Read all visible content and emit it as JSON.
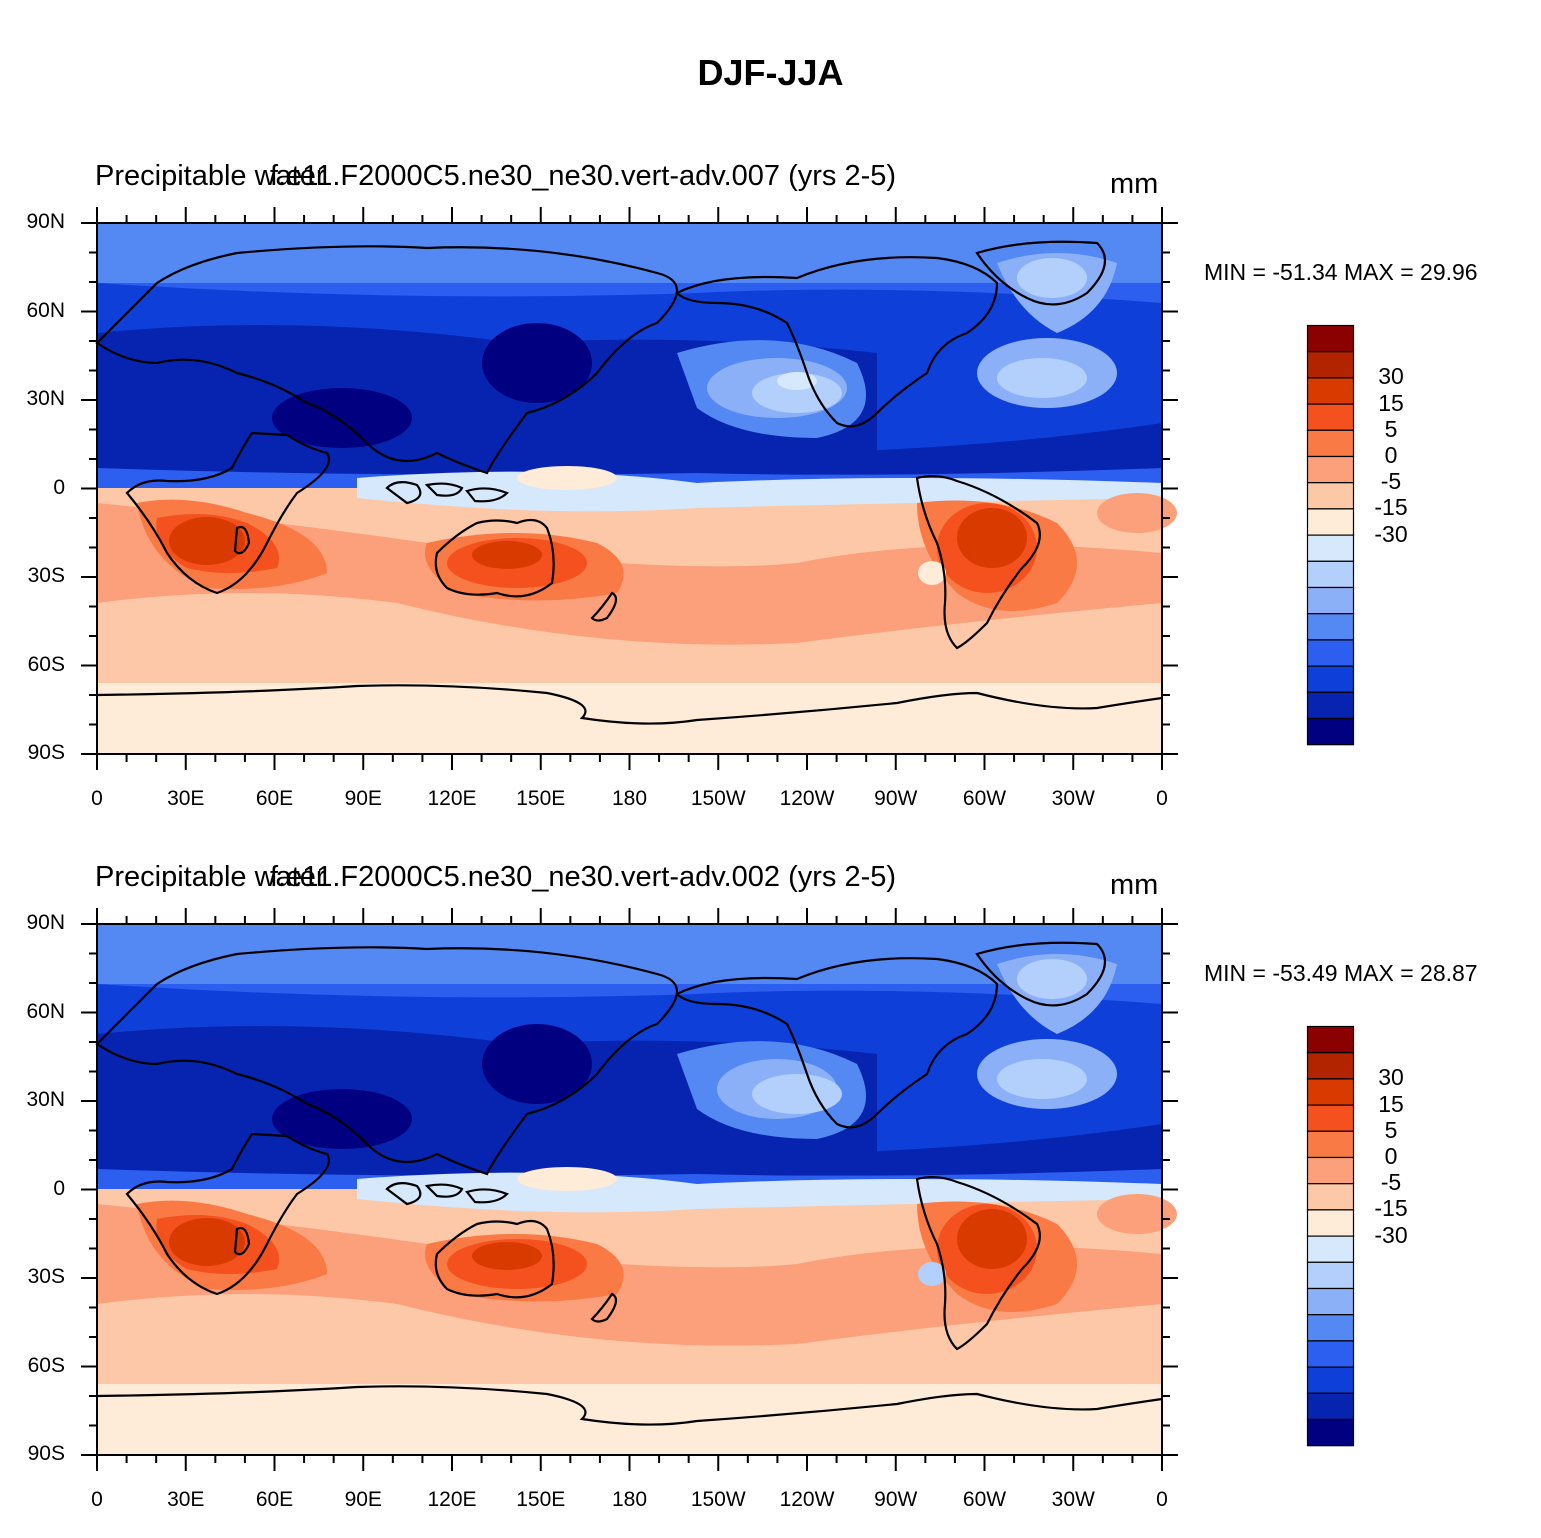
{
  "title": "DJF-JJA",
  "panels": [
    {
      "left_string": "Precipitable water",
      "center_string": "f.e11.F2000C5.ne30_ne30.vert-adv.007 (yrs 2-5)",
      "units": "mm",
      "minmax": "MIN = -51.34 MAX =  29.96"
    },
    {
      "left_string": "Precipitable water",
      "center_string": "f.e11.F2000C5.ne30_ne30.vert-adv.002 (yrs 2-5)",
      "units": "mm",
      "minmax": "MIN = -53.49 MAX =  28.87"
    }
  ],
  "lat_labels": [
    "90N",
    "60N",
    "30N",
    "0",
    "30S",
    "60S",
    "90S"
  ],
  "lon_labels": [
    "0",
    "30E",
    "60E",
    "90E",
    "120E",
    "150E",
    "180",
    "150W",
    "120W",
    "90W",
    "60W",
    "30W",
    "0"
  ],
  "colorbar": {
    "labels": [
      "30",
      "15",
      "5",
      "0",
      "-5",
      "-15",
      "-30"
    ],
    "colors": [
      "#8b0000",
      "#b22400",
      "#d93a00",
      "#f4511e",
      "#f97a45",
      "#fba07a",
      "#fcc8a8",
      "#feebd8",
      "#d6e8fb",
      "#b3cffb",
      "#8cb0f7",
      "#5488f2",
      "#2c5ef0",
      "#0f3fd9",
      "#0724b0",
      "#000080"
    ]
  },
  "map_colors": {
    "deep_red": "#d93a00",
    "red": "#f4511e",
    "orange": "#f97a45",
    "salmon": "#fba07a",
    "peach": "#fcc8a8",
    "cream": "#feebd8",
    "pale_blue": "#d6e8fb",
    "light_blue": "#b3cffb",
    "mid_blue": "#8cb0f7",
    "blue": "#5488f2",
    "strong_blue": "#2c5ef0",
    "dark_blue": "#0f3fd9",
    "deeper_blue": "#0724b0",
    "navy": "#000080"
  }
}
